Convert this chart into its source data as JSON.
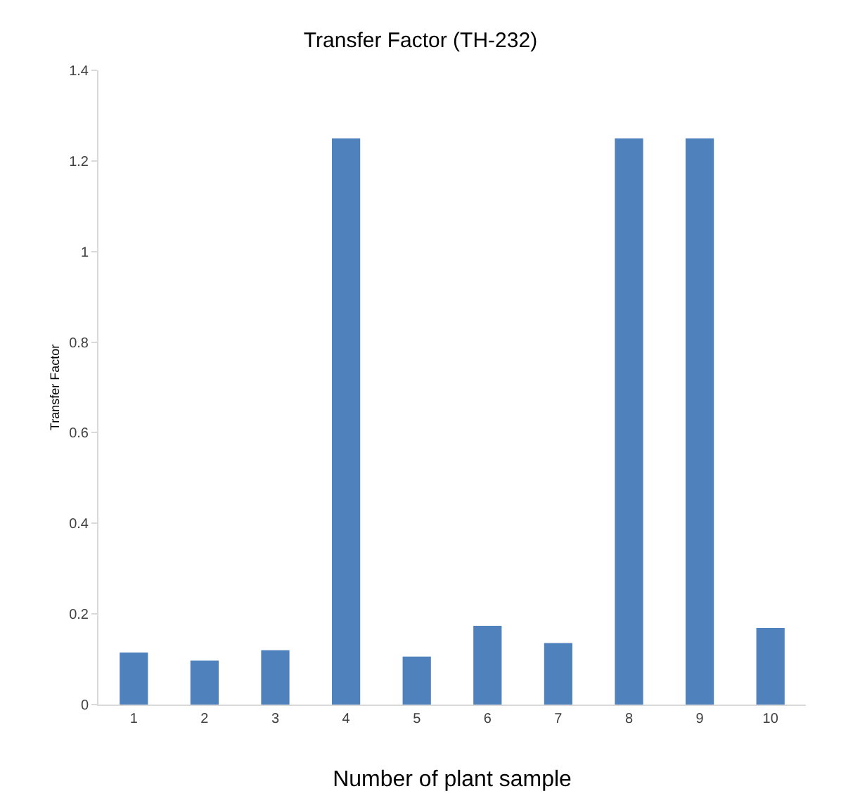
{
  "chart_data": {
    "type": "bar",
    "title": "Transfer Factor (TH-232)",
    "xlabel": "Number of plant sample",
    "ylabel": "Transfer Factor",
    "categories": [
      "1",
      "2",
      "3",
      "4",
      "5",
      "6",
      "7",
      "8",
      "9",
      "10"
    ],
    "values": [
      0.115,
      0.097,
      0.12,
      1.25,
      0.106,
      0.174,
      0.136,
      1.25,
      1.25,
      0.169
    ],
    "color": "#4f81bd",
    "ylim": [
      0,
      1.4
    ],
    "yticks": [
      {
        "value": 0,
        "label": "0"
      },
      {
        "value": 0.2,
        "label": "0.2"
      },
      {
        "value": 0.4,
        "label": "0.4"
      },
      {
        "value": 0.6,
        "label": "0.6"
      },
      {
        "value": 0.8,
        "label": "0.8"
      },
      {
        "value": 1,
        "label": "1"
      },
      {
        "value": 1.2,
        "label": "1.2"
      },
      {
        "value": 1.4,
        "label": "1.4"
      }
    ]
  }
}
